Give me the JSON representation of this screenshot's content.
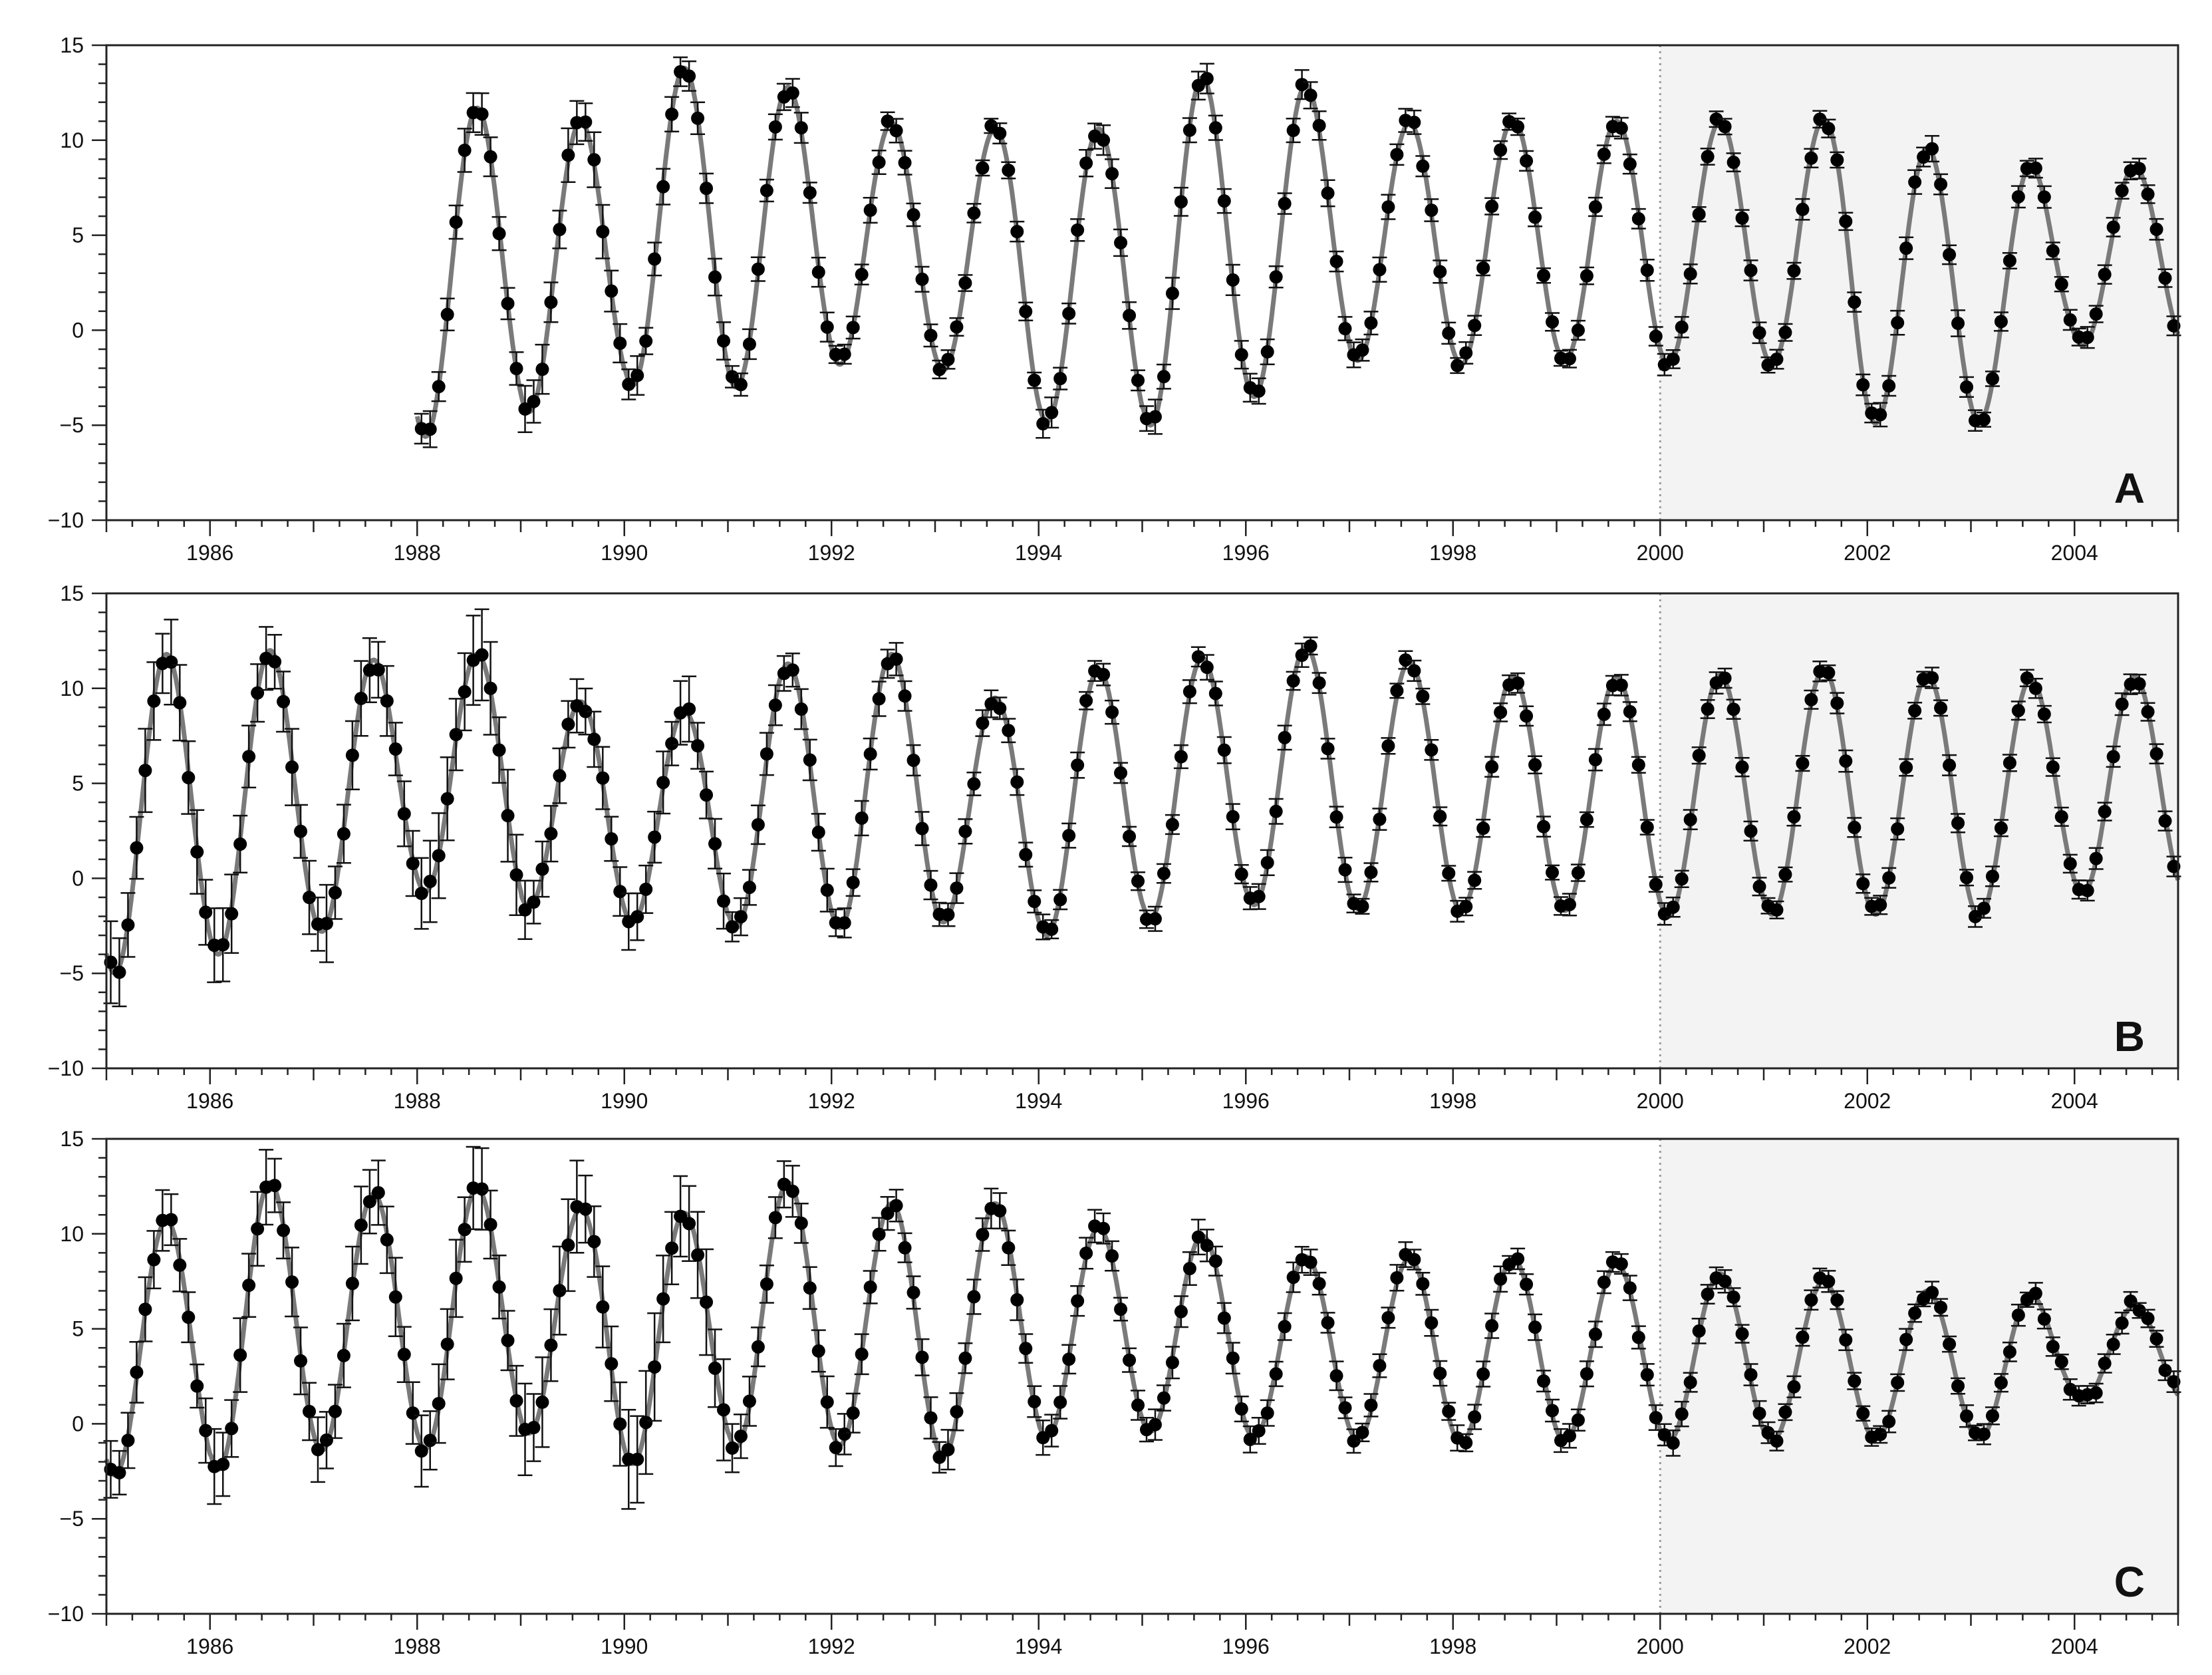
{
  "chart_data": [
    {
      "panel_id": "A",
      "type": "scatter",
      "panel_label": "A",
      "title": "",
      "xlabel": "",
      "ylabel": "",
      "xlim": [
        1985,
        2005
      ],
      "ylim": [
        -10,
        15
      ],
      "x_ticks": [
        1986,
        1988,
        1990,
        1992,
        1994,
        1996,
        1998,
        2000,
        2002,
        2004
      ],
      "y_ticks": [
        -10,
        -5,
        0,
        5,
        10,
        15
      ],
      "shaded_region": [
        2000,
        2005
      ],
      "dotted_vline": 2000,
      "grid": false,
      "legend": "none",
      "fit_line": true,
      "series_start": 1988.0,
      "cycles": [
        [
          11.7,
          -5.6
        ],
        [
          11.0,
          -4.3
        ],
        [
          13.8,
          -2.9
        ],
        [
          12.8,
          -3.0
        ],
        [
          10.9,
          -1.8
        ],
        [
          10.6,
          -2.1
        ],
        [
          10.6,
          -4.8
        ],
        [
          13.3,
          -5.0
        ],
        [
          12.9,
          -3.5
        ],
        [
          10.9,
          -1.6
        ],
        [
          11.1,
          -1.8
        ],
        [
          11.0,
          -1.6
        ],
        [
          11.0,
          -1.8
        ],
        [
          11.1,
          -1.8
        ],
        [
          9.6,
          -4.9
        ],
        [
          8.7,
          -4.8
        ],
        [
          8.6,
          -0.8
        ]
      ],
      "error_bar": [
        1.0,
        1.3,
        0.9,
        0.7,
        0.6,
        0.5,
        0.7,
        0.8,
        0.7,
        0.6,
        0.5,
        0.5,
        0.5,
        0.5,
        0.6,
        0.5,
        0.5
      ]
    },
    {
      "panel_id": "B",
      "type": "scatter",
      "panel_label": "B",
      "title": "",
      "xlabel": "",
      "ylabel": "",
      "xlim": [
        1985,
        2005
      ],
      "ylim": [
        -10,
        15
      ],
      "x_ticks": [
        1986,
        1988,
        1990,
        1992,
        1994,
        1996,
        1998,
        2000,
        2002,
        2004
      ],
      "y_ticks": [
        -10,
        -5,
        0,
        5,
        10,
        15
      ],
      "shaded_region": [
        2000,
        2005
      ],
      "dotted_vline": 2000,
      "grid": false,
      "legend": "none",
      "fit_line": true,
      "series_start": 1985.0,
      "cycles": [
        [
          11.8,
          -5.0
        ],
        [
          12.0,
          -4.0
        ],
        [
          11.5,
          -2.8
        ],
        [
          11.8,
          -0.7
        ],
        [
          9.3,
          -1.5
        ],
        [
          8.8,
          -2.3
        ],
        [
          11.3,
          -2.6
        ],
        [
          11.8,
          -2.6
        ],
        [
          9.5,
          -2.3
        ],
        [
          11.0,
          -3.0
        ],
        [
          11.6,
          -2.1
        ],
        [
          12.2,
          -1.4
        ],
        [
          11.4,
          -1.6
        ],
        [
          10.6,
          -1.7
        ],
        [
          10.6,
          -1.7
        ],
        [
          10.7,
          -2.0
        ],
        [
          11.0,
          -1.9
        ],
        [
          10.7,
          -1.9
        ],
        [
          10.5,
          -2.0
        ],
        [
          10.6,
          -0.8
        ]
      ],
      "error_bar": [
        2.0,
        1.8,
        1.8,
        2.2,
        1.5,
        1.5,
        1.0,
        0.9,
        0.7,
        0.6,
        0.6,
        0.6,
        0.5,
        0.5,
        0.5,
        0.5,
        0.5,
        0.5,
        0.5,
        0.5
      ]
    },
    {
      "panel_id": "C",
      "type": "scatter",
      "panel_label": "C",
      "title": "",
      "xlabel": "",
      "ylabel": "",
      "xlim": [
        1985,
        2005
      ],
      "ylim": [
        -10,
        15
      ],
      "x_ticks": [
        1986,
        1988,
        1990,
        1992,
        1994,
        1996,
        1998,
        2000,
        2002,
        2004
      ],
      "y_ticks": [
        -10,
        -5,
        0,
        5,
        10,
        15
      ],
      "shaded_region": [
        2000,
        2005
      ],
      "dotted_vline": 2000,
      "grid": false,
      "legend": "none",
      "fit_line": true,
      "series_start": 1985.0,
      "cycles": [
        [
          10.7,
          -2.7
        ],
        [
          12.7,
          -2.4
        ],
        [
          12.1,
          -1.4
        ],
        [
          12.4,
          -1.3
        ],
        [
          11.3,
          -0.5
        ],
        [
          11.1,
          -2.1
        ],
        [
          12.7,
          -1.2
        ],
        [
          11.6,
          -1.1
        ],
        [
          11.6,
          -1.7
        ],
        [
          10.3,
          -0.7
        ],
        [
          9.9,
          -0.4
        ],
        [
          8.8,
          -0.7
        ],
        [
          8.7,
          -0.8
        ],
        [
          8.7,
          -1.0
        ],
        [
          8.4,
          -0.9
        ],
        [
          7.9,
          -0.9
        ],
        [
          7.5,
          -0.9
        ],
        [
          7.0,
          -0.8
        ],
        [
          6.8,
          -0.8
        ],
        [
          6.2,
          1.2
        ]
      ],
      "error_bar": [
        1.5,
        1.8,
        1.8,
        2.0,
        2.2,
        2.5,
        1.2,
        1.0,
        1.0,
        0.8,
        0.8,
        0.7,
        0.6,
        0.6,
        0.6,
        0.6,
        0.5,
        0.5,
        0.5,
        0.5
      ]
    }
  ]
}
